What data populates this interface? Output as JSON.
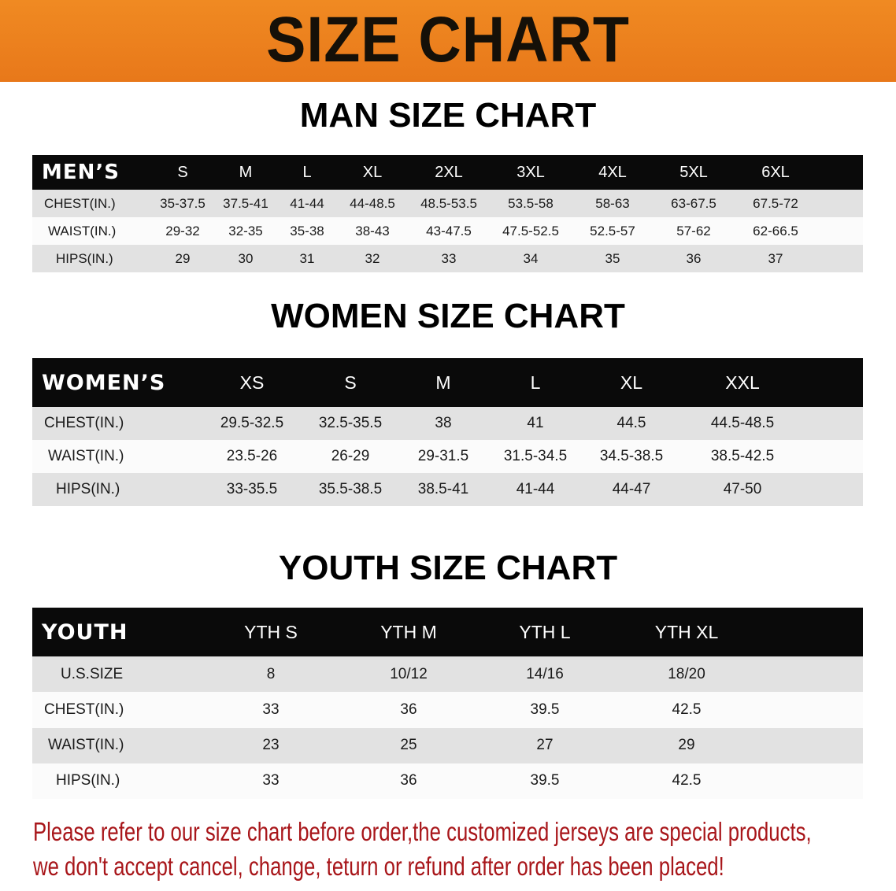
{
  "banner_title": "SIZE CHART",
  "men": {
    "title": "MAN SIZE CHART",
    "header_label": "MEN’S",
    "sizes": [
      "S",
      "M",
      "L",
      "XL",
      "2XL",
      "3XL",
      "4XL",
      "5XL",
      "6XL"
    ],
    "rows": [
      {
        "label": "CHEST(IN.)",
        "values": [
          "35-37.5",
          "37.5-41",
          "41-44",
          "44-48.5",
          "48.5-53.5",
          "53.5-58",
          "58-63",
          "63-67.5",
          "67.5-72"
        ]
      },
      {
        "label": "WAIST(IN.)",
        "values": [
          "29-32",
          "32-35",
          "35-38",
          "38-43",
          "43-47.5",
          "47.5-52.5",
          "52.5-57",
          "57-62",
          "62-66.5"
        ]
      },
      {
        "label": "HIPS(IN.)",
        "values": [
          "29",
          "30",
          "31",
          "32",
          "33",
          "34",
          "35",
          "36",
          "37"
        ]
      }
    ]
  },
  "women": {
    "title": "WOMEN SIZE CHART",
    "header_label": "WOMEN’S",
    "sizes": [
      "XS",
      "S",
      "M",
      "L",
      "XL",
      "XXL"
    ],
    "rows": [
      {
        "label": "CHEST(IN.)",
        "values": [
          "29.5-32.5",
          "32.5-35.5",
          "38",
          "41",
          "44.5",
          "44.5-48.5"
        ]
      },
      {
        "label": "WAIST(IN.)",
        "values": [
          "23.5-26",
          "26-29",
          "29-31.5",
          "31.5-34.5",
          "34.5-38.5",
          "38.5-42.5"
        ]
      },
      {
        "label": "HIPS(IN.)",
        "values": [
          "33-35.5",
          "35.5-38.5",
          "38.5-41",
          "41-44",
          "44-47",
          "47-50"
        ]
      }
    ]
  },
  "youth": {
    "title": "YOUTH SIZE CHART",
    "header_label": "YOUTH",
    "sizes": [
      "YTH S",
      "YTH M",
      "YTH L",
      "YTH XL"
    ],
    "rows": [
      {
        "label": "U.S.SIZE",
        "values": [
          "8",
          "10/12",
          "14/16",
          "18/20"
        ]
      },
      {
        "label": "CHEST(IN.)",
        "values": [
          "33",
          "36",
          "39.5",
          "42.5"
        ]
      },
      {
        "label": "WAIST(IN.)",
        "values": [
          "23",
          "25",
          "27",
          "29"
        ]
      },
      {
        "label": "HIPS(IN.)",
        "values": [
          "33",
          "36",
          "39.5",
          "42.5"
        ]
      }
    ]
  },
  "note": {
    "line1": "Please refer to our size chart before order,the customized jerseys are special products,",
    "line2": "we don't accept cancel, change, teturn or refund after order has been placed!"
  },
  "colors": {
    "banner": "#e8781a",
    "note": "#a8161a",
    "header_row": "#0a0a0a"
  }
}
